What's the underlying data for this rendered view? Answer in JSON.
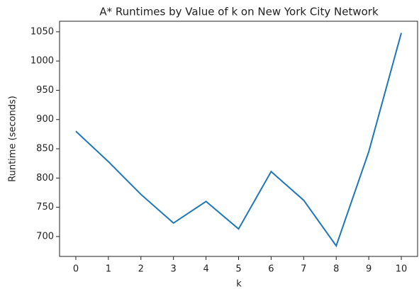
{
  "chart_data": {
    "type": "line",
    "title": "A* Runtimes by Value of k on New York City Network",
    "x_label": "k",
    "y_label": "Runtime (seconds)",
    "x": [
      0,
      1,
      2,
      3,
      4,
      5,
      6,
      7,
      8,
      9,
      10
    ],
    "series": [
      {
        "name": "Runtime",
        "color": "#1f77b4",
        "values": [
          880,
          828,
          772,
          723,
          760,
          713,
          811,
          762,
          684,
          845,
          1048
        ]
      }
    ],
    "xlim": [
      -0.5,
      10.5
    ],
    "xticks": [
      0,
      1,
      2,
      3,
      4,
      5,
      6,
      7,
      8,
      9,
      10
    ],
    "ylim": [
      666,
      1068
    ],
    "yticks": [
      700,
      750,
      800,
      850,
      900,
      950,
      1000,
      1050
    ]
  }
}
